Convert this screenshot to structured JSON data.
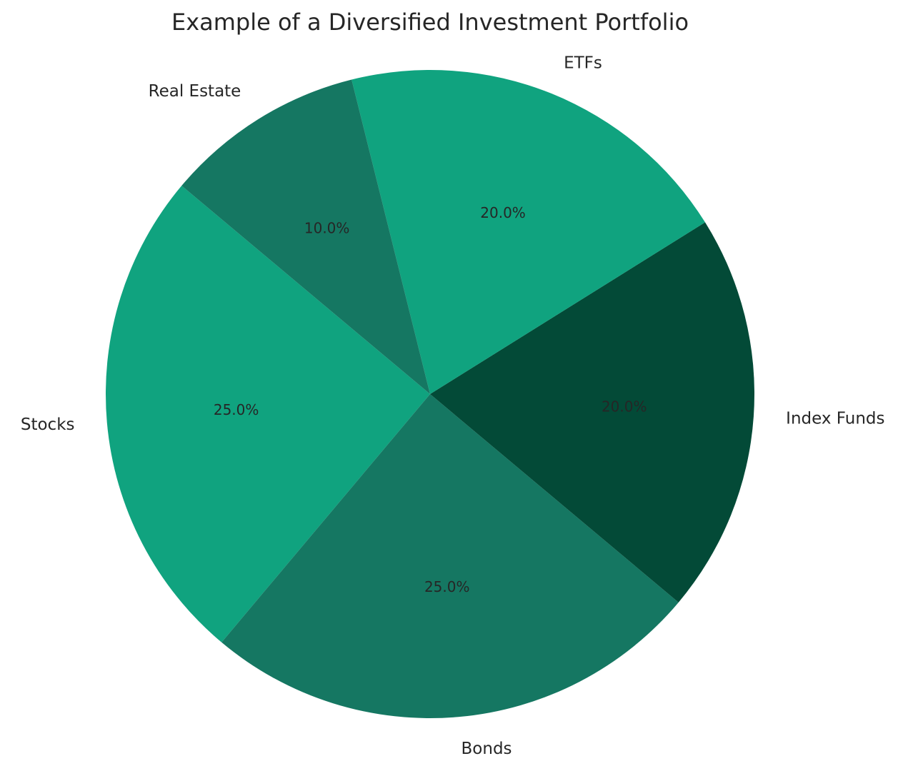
{
  "chart_data": {
    "type": "pie",
    "title": "Example of a Diversified Investment Portfolio",
    "categories": [
      "Stocks",
      "Bonds",
      "Index Funds",
      "ETFs",
      "Real Estate"
    ],
    "values": [
      25,
      25,
      20,
      20,
      10
    ],
    "percent_labels": [
      "25.0%",
      "25.0%",
      "20.0%",
      "20.0%",
      "10.0%"
    ],
    "colors": [
      "#10a37f",
      "#157762",
      "#034a37",
      "#10a37f",
      "#157762"
    ],
    "start_angle": 140,
    "direction": "counterclockwise",
    "legend": false,
    "xlabel": "",
    "ylabel": ""
  }
}
